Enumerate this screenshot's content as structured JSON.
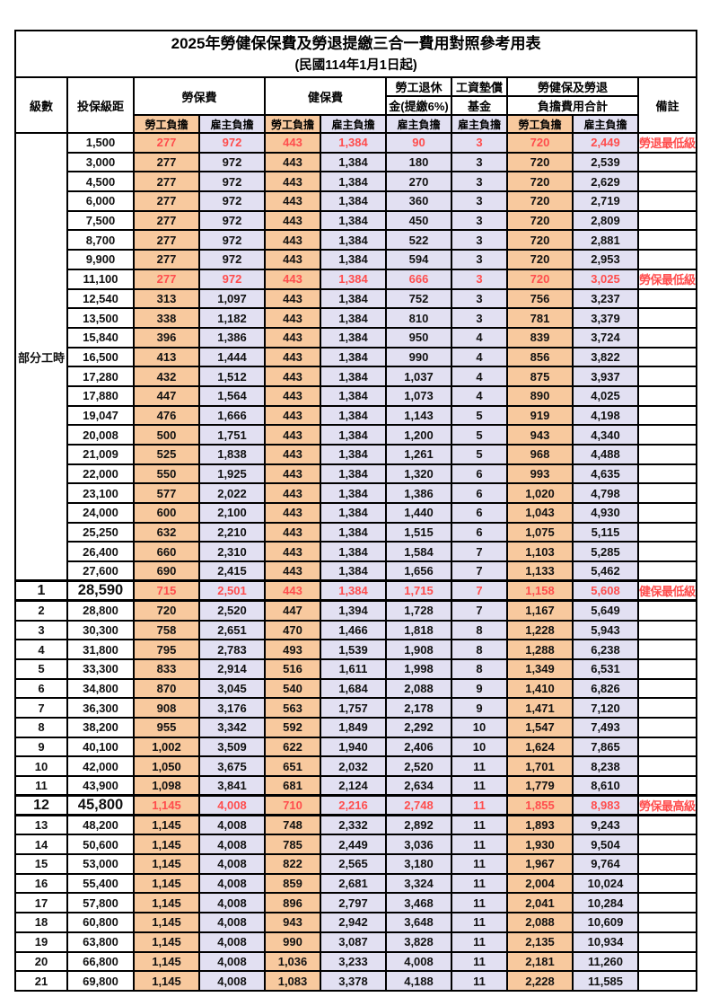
{
  "title": "2025年勞健保保費及勞退提繳三合一費用對照參考用表",
  "subtitle": "(民國114年1月1日起)",
  "columns": {
    "level": "級數",
    "bracket": "投保級距",
    "labor_ins": "勞保費",
    "health_ins": "健保費",
    "pension_line1": "勞工退休",
    "pension_line2": "金(提繳6%)",
    "wage_fund_line1": "工資墊償",
    "wage_fund_line2": "基金",
    "total_line1": "勞健保及勞退",
    "total_line2": "負擔費用合計",
    "remark": "備註",
    "employee_share": "勞工負擔",
    "employer_share": "雇主負擔"
  },
  "part_time_label": "部分工時",
  "colors": {
    "employee_bg": "#F8C99E",
    "employer_bg": "#E2E0F2",
    "highlight_text": "#FF4D4D",
    "border": "#000000"
  },
  "rows": [
    {
      "level": "部分工時",
      "level_span": 23,
      "bracket": "1,500",
      "values": [
        "277",
        "972",
        "443",
        "1,384",
        "90",
        "3",
        "720",
        "2,449"
      ],
      "remark": "勞退最低級距",
      "highlight": true,
      "key": false
    },
    {
      "level": null,
      "bracket": "3,000",
      "values": [
        "277",
        "972",
        "443",
        "1,384",
        "180",
        "3",
        "720",
        "2,539"
      ],
      "remark": "",
      "highlight": false,
      "key": false
    },
    {
      "level": null,
      "bracket": "4,500",
      "values": [
        "277",
        "972",
        "443",
        "1,384",
        "270",
        "3",
        "720",
        "2,629"
      ],
      "remark": "",
      "highlight": false,
      "key": false
    },
    {
      "level": null,
      "bracket": "6,000",
      "values": [
        "277",
        "972",
        "443",
        "1,384",
        "360",
        "3",
        "720",
        "2,719"
      ],
      "remark": "",
      "highlight": false,
      "key": false
    },
    {
      "level": null,
      "bracket": "7,500",
      "values": [
        "277",
        "972",
        "443",
        "1,384",
        "450",
        "3",
        "720",
        "2,809"
      ],
      "remark": "",
      "highlight": false,
      "key": false
    },
    {
      "level": null,
      "bracket": "8,700",
      "values": [
        "277",
        "972",
        "443",
        "1,384",
        "522",
        "3",
        "720",
        "2,881"
      ],
      "remark": "",
      "highlight": false,
      "key": false
    },
    {
      "level": null,
      "bracket": "9,900",
      "values": [
        "277",
        "972",
        "443",
        "1,384",
        "594",
        "3",
        "720",
        "2,953"
      ],
      "remark": "",
      "highlight": false,
      "key": false
    },
    {
      "level": null,
      "bracket": "11,100",
      "values": [
        "277",
        "972",
        "443",
        "1,384",
        "666",
        "3",
        "720",
        "3,025"
      ],
      "remark": "勞保最低級距",
      "highlight": true,
      "key": false
    },
    {
      "level": null,
      "bracket": "12,540",
      "values": [
        "313",
        "1,097",
        "443",
        "1,384",
        "752",
        "3",
        "756",
        "3,237"
      ],
      "remark": "",
      "highlight": false,
      "key": false
    },
    {
      "level": null,
      "bracket": "13,500",
      "values": [
        "338",
        "1,182",
        "443",
        "1,384",
        "810",
        "3",
        "781",
        "3,379"
      ],
      "remark": "",
      "highlight": false,
      "key": false
    },
    {
      "level": null,
      "bracket": "15,840",
      "values": [
        "396",
        "1,386",
        "443",
        "1,384",
        "950",
        "4",
        "839",
        "3,724"
      ],
      "remark": "",
      "highlight": false,
      "key": false
    },
    {
      "level": null,
      "bracket": "16,500",
      "values": [
        "413",
        "1,444",
        "443",
        "1,384",
        "990",
        "4",
        "856",
        "3,822"
      ],
      "remark": "",
      "highlight": false,
      "key": false
    },
    {
      "level": null,
      "bracket": "17,280",
      "values": [
        "432",
        "1,512",
        "443",
        "1,384",
        "1,037",
        "4",
        "875",
        "3,937"
      ],
      "remark": "",
      "highlight": false,
      "key": false
    },
    {
      "level": null,
      "bracket": "17,880",
      "values": [
        "447",
        "1,564",
        "443",
        "1,384",
        "1,073",
        "4",
        "890",
        "4,025"
      ],
      "remark": "",
      "highlight": false,
      "key": false
    },
    {
      "level": null,
      "bracket": "19,047",
      "values": [
        "476",
        "1,666",
        "443",
        "1,384",
        "1,143",
        "5",
        "919",
        "4,198"
      ],
      "remark": "",
      "highlight": false,
      "key": false
    },
    {
      "level": null,
      "bracket": "20,008",
      "values": [
        "500",
        "1,751",
        "443",
        "1,384",
        "1,200",
        "5",
        "943",
        "4,340"
      ],
      "remark": "",
      "highlight": false,
      "key": false
    },
    {
      "level": null,
      "bracket": "21,009",
      "values": [
        "525",
        "1,838",
        "443",
        "1,384",
        "1,261",
        "5",
        "968",
        "4,488"
      ],
      "remark": "",
      "highlight": false,
      "key": false
    },
    {
      "level": null,
      "bracket": "22,000",
      "values": [
        "550",
        "1,925",
        "443",
        "1,384",
        "1,320",
        "6",
        "993",
        "4,635"
      ],
      "remark": "",
      "highlight": false,
      "key": false
    },
    {
      "level": null,
      "bracket": "23,100",
      "values": [
        "577",
        "2,022",
        "443",
        "1,384",
        "1,386",
        "6",
        "1,020",
        "4,798"
      ],
      "remark": "",
      "highlight": false,
      "key": false
    },
    {
      "level": null,
      "bracket": "24,000",
      "values": [
        "600",
        "2,100",
        "443",
        "1,384",
        "1,440",
        "6",
        "1,043",
        "4,930"
      ],
      "remark": "",
      "highlight": false,
      "key": false
    },
    {
      "level": null,
      "bracket": "25,250",
      "values": [
        "632",
        "2,210",
        "443",
        "1,384",
        "1,515",
        "6",
        "1,075",
        "5,115"
      ],
      "remark": "",
      "highlight": false,
      "key": false
    },
    {
      "level": null,
      "bracket": "26,400",
      "values": [
        "660",
        "2,310",
        "443",
        "1,384",
        "1,584",
        "7",
        "1,103",
        "5,285"
      ],
      "remark": "",
      "highlight": false,
      "key": false
    },
    {
      "level": null,
      "bracket": "27,600",
      "values": [
        "690",
        "2,415",
        "443",
        "1,384",
        "1,656",
        "7",
        "1,133",
        "5,462"
      ],
      "remark": "",
      "highlight": false,
      "key": false
    },
    {
      "level": "1",
      "bracket": "28,590",
      "values": [
        "715",
        "2,501",
        "443",
        "1,384",
        "1,715",
        "7",
        "1,158",
        "5,608"
      ],
      "remark": "健保最低級距",
      "highlight": true,
      "key": true
    },
    {
      "level": "2",
      "bracket": "28,800",
      "values": [
        "720",
        "2,520",
        "447",
        "1,394",
        "1,728",
        "7",
        "1,167",
        "5,649"
      ],
      "remark": "",
      "highlight": false,
      "key": false
    },
    {
      "level": "3",
      "bracket": "30,300",
      "values": [
        "758",
        "2,651",
        "470",
        "1,466",
        "1,818",
        "8",
        "1,228",
        "5,943"
      ],
      "remark": "",
      "highlight": false,
      "key": false
    },
    {
      "level": "4",
      "bracket": "31,800",
      "values": [
        "795",
        "2,783",
        "493",
        "1,539",
        "1,908",
        "8",
        "1,288",
        "6,238"
      ],
      "remark": "",
      "highlight": false,
      "key": false
    },
    {
      "level": "5",
      "bracket": "33,300",
      "values": [
        "833",
        "2,914",
        "516",
        "1,611",
        "1,998",
        "8",
        "1,349",
        "6,531"
      ],
      "remark": "",
      "highlight": false,
      "key": false
    },
    {
      "level": "6",
      "bracket": "34,800",
      "values": [
        "870",
        "3,045",
        "540",
        "1,684",
        "2,088",
        "9",
        "1,410",
        "6,826"
      ],
      "remark": "",
      "highlight": false,
      "key": false
    },
    {
      "level": "7",
      "bracket": "36,300",
      "values": [
        "908",
        "3,176",
        "563",
        "1,757",
        "2,178",
        "9",
        "1,471",
        "7,120"
      ],
      "remark": "",
      "highlight": false,
      "key": false
    },
    {
      "level": "8",
      "bracket": "38,200",
      "values": [
        "955",
        "3,342",
        "592",
        "1,849",
        "2,292",
        "10",
        "1,547",
        "7,493"
      ],
      "remark": "",
      "highlight": false,
      "key": false
    },
    {
      "level": "9",
      "bracket": "40,100",
      "values": [
        "1,002",
        "3,509",
        "622",
        "1,940",
        "2,406",
        "10",
        "1,624",
        "7,865"
      ],
      "remark": "",
      "highlight": false,
      "key": false
    },
    {
      "level": "10",
      "bracket": "42,000",
      "values": [
        "1,050",
        "3,675",
        "651",
        "2,032",
        "2,520",
        "11",
        "1,701",
        "8,238"
      ],
      "remark": "",
      "highlight": false,
      "key": false
    },
    {
      "level": "11",
      "bracket": "43,900",
      "values": [
        "1,098",
        "3,841",
        "681",
        "2,124",
        "2,634",
        "11",
        "1,779",
        "8,610"
      ],
      "remark": "",
      "highlight": false,
      "key": false
    },
    {
      "level": "12",
      "bracket": "45,800",
      "values": [
        "1,145",
        "4,008",
        "710",
        "2,216",
        "2,748",
        "11",
        "1,855",
        "8,983"
      ],
      "remark": "勞保最高級距",
      "highlight": true,
      "key": true
    },
    {
      "level": "13",
      "bracket": "48,200",
      "values": [
        "1,145",
        "4,008",
        "748",
        "2,332",
        "2,892",
        "11",
        "1,893",
        "9,243"
      ],
      "remark": "",
      "highlight": false,
      "key": false
    },
    {
      "level": "14",
      "bracket": "50,600",
      "values": [
        "1,145",
        "4,008",
        "785",
        "2,449",
        "3,036",
        "11",
        "1,930",
        "9,504"
      ],
      "remark": "",
      "highlight": false,
      "key": false
    },
    {
      "level": "15",
      "bracket": "53,000",
      "values": [
        "1,145",
        "4,008",
        "822",
        "2,565",
        "3,180",
        "11",
        "1,967",
        "9,764"
      ],
      "remark": "",
      "highlight": false,
      "key": false
    },
    {
      "level": "16",
      "bracket": "55,400",
      "values": [
        "1,145",
        "4,008",
        "859",
        "2,681",
        "3,324",
        "11",
        "2,004",
        "10,024"
      ],
      "remark": "",
      "highlight": false,
      "key": false
    },
    {
      "level": "17",
      "bracket": "57,800",
      "values": [
        "1,145",
        "4,008",
        "896",
        "2,797",
        "3,468",
        "11",
        "2,041",
        "10,284"
      ],
      "remark": "",
      "highlight": false,
      "key": false
    },
    {
      "level": "18",
      "bracket": "60,800",
      "values": [
        "1,145",
        "4,008",
        "943",
        "2,942",
        "3,648",
        "11",
        "2,088",
        "10,609"
      ],
      "remark": "",
      "highlight": false,
      "key": false
    },
    {
      "level": "19",
      "bracket": "63,800",
      "values": [
        "1,145",
        "4,008",
        "990",
        "3,087",
        "3,828",
        "11",
        "2,135",
        "10,934"
      ],
      "remark": "",
      "highlight": false,
      "key": false
    },
    {
      "level": "20",
      "bracket": "66,800",
      "values": [
        "1,145",
        "4,008",
        "1,036",
        "3,233",
        "4,008",
        "11",
        "2,181",
        "11,260"
      ],
      "remark": "",
      "highlight": false,
      "key": false
    },
    {
      "level": "21",
      "bracket": "69,800",
      "values": [
        "1,145",
        "4,008",
        "1,083",
        "3,378",
        "4,188",
        "11",
        "2,228",
        "11,585"
      ],
      "remark": "",
      "highlight": false,
      "key": false
    }
  ]
}
